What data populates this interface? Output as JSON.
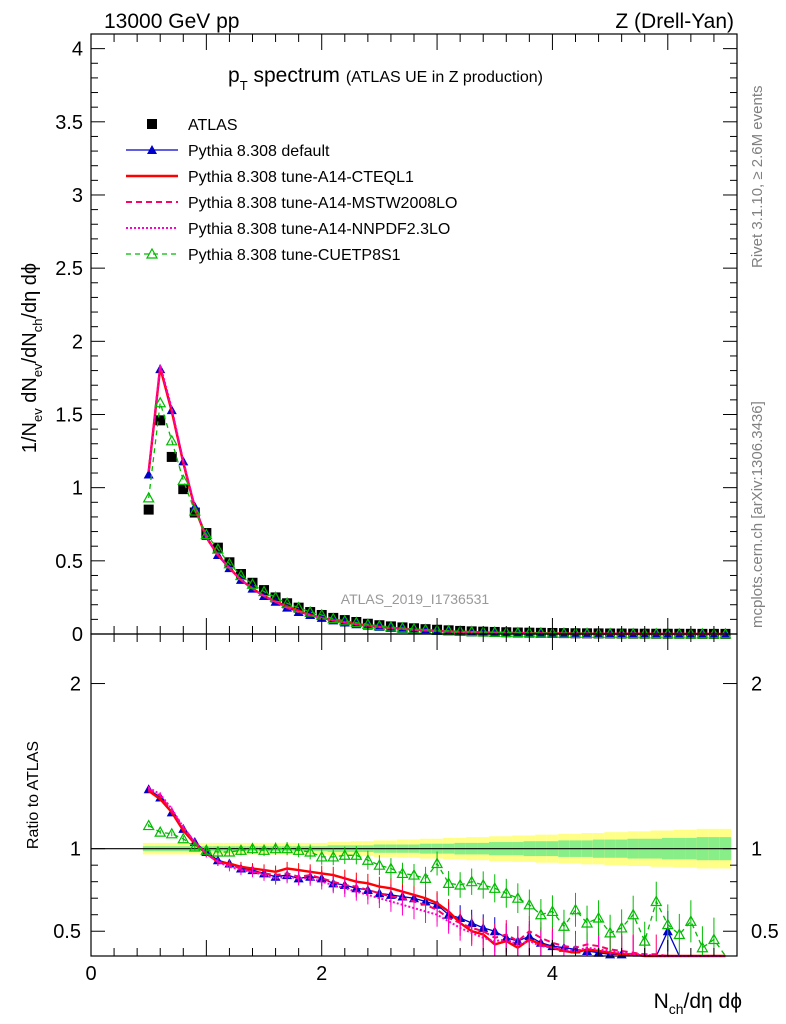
{
  "header": {
    "left": "13000 GeV pp",
    "right": "Z (Drell-Yan)"
  },
  "side": {
    "rivet": "Rivet 3.1.10, ≥ 2.6M events",
    "mcplots": "mcplots.cern.ch [arXiv:1306.3436]"
  },
  "watermark": "ATLAS_2019_I1736531",
  "title": {
    "main": "p",
    "sub": "T",
    "rest": " spectrum",
    "small": "(ATLAS UE in Z production)"
  },
  "axis_labels": {
    "ratio_y": "Ratio to ATLAS"
  },
  "colors": {
    "atlas": "#000000",
    "default": "#0000cc",
    "cteql1": "#ff0000",
    "mstw": "#ff0066",
    "nnpdf": "#ff00cc",
    "cuetp": "#00bb00",
    "band_outer": "#ffff88",
    "band_inner": "#88ee88"
  },
  "chart_data": {
    "type": "line",
    "x": [
      0.5,
      0.6,
      0.7,
      0.8,
      0.9,
      1.0,
      1.1,
      1.2,
      1.3,
      1.4,
      1.5,
      1.6,
      1.7,
      1.8,
      1.9,
      2.0,
      2.1,
      2.2,
      2.3,
      2.4,
      2.5,
      2.6,
      2.7,
      2.8,
      2.9,
      3.0,
      3.1,
      3.2,
      3.3,
      3.4,
      3.5,
      3.6,
      3.7,
      3.8,
      3.9,
      4.0,
      4.1,
      4.2,
      4.3,
      4.4,
      4.5,
      4.6,
      4.7,
      4.8,
      4.9,
      5.0,
      5.1,
      5.2,
      5.3,
      5.4,
      5.5
    ],
    "xlim": [
      0,
      5.6
    ],
    "xticks": [
      "0",
      "2",
      "4"
    ],
    "main": {
      "ylim": [
        0,
        4.1
      ],
      "yticks": [
        "0",
        "0.5",
        "1",
        "1.5",
        "2",
        "2.5",
        "3",
        "3.5",
        "4"
      ]
    },
    "ratio": {
      "ylim": [
        0.35,
        2.3
      ],
      "yticks": [
        "0.5",
        "1",
        "2"
      ]
    },
    "legend": [
      "ATLAS",
      "Pythia 8.308 default",
      "Pythia 8.308 tune-A14-CTEQL1",
      "Pythia 8.308 tune-A14-MSTW2008LO",
      "Pythia 8.308 tune-A14-NNPDF2.3LO",
      "Pythia 8.308 tune-CUETP8S1"
    ],
    "series": [
      {
        "name": "ATLAS",
        "values": [
          0.85,
          1.46,
          1.21,
          0.99,
          0.83,
          0.69,
          0.59,
          0.49,
          0.41,
          0.35,
          0.3,
          0.25,
          0.21,
          0.18,
          0.15,
          0.13,
          0.11,
          0.095,
          0.082,
          0.07,
          0.06,
          0.052,
          0.045,
          0.039,
          0.033,
          0.029,
          0.025,
          0.021,
          0.018,
          0.016,
          0.014,
          0.012,
          0.01,
          0.009,
          0.008,
          0.007,
          0.006,
          0.005,
          0.0045,
          0.004,
          0.0035,
          0.003,
          0.0025,
          0.002,
          0.0018,
          0.0016,
          0.0014,
          0.0012,
          0.001,
          0.0009,
          0.0008
        ]
      },
      {
        "name": "Pythia 8.308 default",
        "values": [
          1.09,
          1.81,
          1.53,
          1.18,
          0.87,
          0.67,
          0.54,
          0.45,
          0.37,
          0.31,
          0.26,
          0.22,
          0.18,
          0.15,
          0.13,
          0.11,
          0.093,
          0.079,
          0.067,
          0.057,
          0.049,
          0.041,
          0.035,
          0.03,
          0.025,
          0.021,
          0.018,
          0.015,
          0.013,
          0.011,
          0.009,
          0.008,
          0.007,
          0.006,
          0.005,
          0.004,
          0.0035,
          0.003,
          0.0025,
          0.002,
          0.0017,
          0.0015,
          0.0013,
          0.0011,
          0.0009,
          0.0008,
          0.0007,
          0.0006,
          0.0005,
          0.0004,
          0.0003
        ]
      },
      {
        "name": "Pythia 8.308 tune-A14-CTEQL1",
        "values": [
          1.11,
          1.82,
          1.52,
          1.17,
          0.86,
          0.66,
          0.54,
          0.45,
          0.37,
          0.31,
          0.26,
          0.22,
          0.19,
          0.16,
          0.13,
          0.11,
          0.094,
          0.08,
          0.068,
          0.058,
          0.049,
          0.042,
          0.036,
          0.03,
          0.026,
          0.022,
          0.018,
          0.015,
          0.013,
          0.011,
          0.009,
          0.008,
          0.007,
          0.006,
          0.005,
          0.004,
          0.0035,
          0.003,
          0.0025,
          0.002,
          0.0017,
          0.0015,
          0.0013,
          0.0011,
          0.0009,
          0.0008,
          0.0007,
          0.0006,
          0.0005,
          0.0004,
          0.0003
        ]
      },
      {
        "name": "Pythia 8.308 tune-A14-MSTW2008LO",
        "values": [
          1.11,
          1.83,
          1.53,
          1.18,
          0.87,
          0.66,
          0.54,
          0.45,
          0.37,
          0.31,
          0.26,
          0.22,
          0.18,
          0.15,
          0.13,
          0.11,
          0.092,
          0.078,
          0.066,
          0.056,
          0.048,
          0.04,
          0.034,
          0.029,
          0.025,
          0.021,
          0.018,
          0.015,
          0.012,
          0.01,
          0.009,
          0.007,
          0.006,
          0.005,
          0.0045,
          0.004,
          0.0035,
          0.003,
          0.0025,
          0.002,
          0.0017,
          0.0015,
          0.0013,
          0.0011,
          0.0009,
          0.0008,
          0.0007,
          0.0006,
          0.0005,
          0.0004,
          0.0003
        ]
      },
      {
        "name": "Pythia 8.308 tune-A14-NNPDF2.3LO",
        "values": [
          1.12,
          1.84,
          1.54,
          1.18,
          0.87,
          0.66,
          0.54,
          0.45,
          0.37,
          0.31,
          0.26,
          0.22,
          0.18,
          0.15,
          0.13,
          0.11,
          0.092,
          0.078,
          0.066,
          0.056,
          0.047,
          0.04,
          0.034,
          0.029,
          0.024,
          0.02,
          0.017,
          0.014,
          0.012,
          0.01,
          0.009,
          0.007,
          0.006,
          0.005,
          0.0045,
          0.004,
          0.0035,
          0.003,
          0.0025,
          0.002,
          0.0017,
          0.0015,
          0.0013,
          0.0011,
          0.0009,
          0.0008,
          0.0007,
          0.0006,
          0.0005,
          0.0004,
          0.0003
        ]
      },
      {
        "name": "Pythia 8.308 tune-CUETP8S1",
        "values": [
          0.93,
          1.58,
          1.32,
          1.05,
          0.84,
          0.68,
          0.58,
          0.48,
          0.4,
          0.34,
          0.29,
          0.25,
          0.21,
          0.18,
          0.15,
          0.13,
          0.105,
          0.09,
          0.078,
          0.066,
          0.056,
          0.048,
          0.041,
          0.035,
          0.03,
          0.026,
          0.022,
          0.019,
          0.016,
          0.014,
          0.012,
          0.01,
          0.009,
          0.008,
          0.007,
          0.006,
          0.005,
          0.0045,
          0.004,
          0.0035,
          0.003,
          0.0025,
          0.002,
          0.0017,
          0.0015,
          0.0013,
          0.0011,
          0.0009,
          0.0008,
          0.0007,
          0.0006
        ]
      }
    ],
    "ratio_series": [
      {
        "name": "Pythia 8.308 default",
        "values": [
          1.36,
          1.31,
          1.22,
          1.12,
          1.04,
          0.98,
          0.93,
          0.91,
          0.88,
          0.87,
          0.85,
          0.83,
          0.84,
          0.82,
          0.83,
          0.82,
          0.79,
          0.78,
          0.76,
          0.75,
          0.73,
          0.72,
          0.71,
          0.7,
          0.68,
          0.66,
          0.6,
          0.58,
          0.55,
          0.52,
          0.5,
          0.46,
          0.44,
          0.47,
          0.43,
          0.41,
          0.4,
          0.39,
          0.38,
          0.37,
          0.36,
          0.36,
          0.35,
          0.35,
          0.35,
          0.5,
          0.35,
          0.35,
          0.35,
          0.35,
          0.35
        ]
      },
      {
        "name": "Pythia 8.308 tune-A14-CTEQL1",
        "values": [
          1.35,
          1.3,
          1.22,
          1.11,
          1.03,
          0.97,
          0.92,
          0.91,
          0.89,
          0.88,
          0.87,
          0.86,
          0.88,
          0.87,
          0.86,
          0.85,
          0.84,
          0.82,
          0.8,
          0.79,
          0.77,
          0.76,
          0.74,
          0.72,
          0.7,
          0.67,
          0.62,
          0.55,
          0.5,
          0.48,
          0.42,
          0.44,
          0.4,
          0.45,
          0.42,
          0.4,
          0.38,
          0.37,
          0.39,
          0.38,
          0.37,
          0.36,
          0.36,
          0.35,
          0.35,
          0.35,
          0.35,
          0.35,
          0.35,
          0.35,
          0.35
        ]
      },
      {
        "name": "Pythia 8.308 tune-A14-MSTW2008LO",
        "values": [
          1.36,
          1.32,
          1.23,
          1.13,
          1.04,
          0.97,
          0.92,
          0.9,
          0.88,
          0.86,
          0.85,
          0.84,
          0.85,
          0.83,
          0.84,
          0.82,
          0.8,
          0.78,
          0.77,
          0.75,
          0.73,
          0.71,
          0.7,
          0.68,
          0.66,
          0.63,
          0.58,
          0.55,
          0.52,
          0.5,
          0.46,
          0.48,
          0.44,
          0.5,
          0.46,
          0.43,
          0.41,
          0.4,
          0.42,
          0.41,
          0.39,
          0.38,
          0.37,
          0.36,
          0.36,
          0.35,
          0.35,
          0.35,
          0.35,
          0.35,
          0.35
        ]
      },
      {
        "name": "Pythia 8.308 tune-A14-NNPDF2.3LO",
        "values": [
          1.37,
          1.33,
          1.24,
          1.13,
          1.04,
          0.97,
          0.92,
          0.89,
          0.87,
          0.86,
          0.84,
          0.82,
          0.83,
          0.82,
          0.82,
          0.8,
          0.78,
          0.76,
          0.74,
          0.72,
          0.7,
          0.68,
          0.66,
          0.64,
          0.62,
          0.6,
          0.56,
          0.52,
          0.49,
          0.46,
          0.44,
          0.45,
          0.42,
          0.44,
          0.41,
          0.4,
          0.39,
          0.38,
          0.4,
          0.39,
          0.38,
          0.37,
          0.36,
          0.36,
          0.35,
          0.35,
          0.35,
          0.35,
          0.35,
          0.35,
          0.35
        ]
      },
      {
        "name": "Pythia 8.308 tune-CUETP8S1",
        "values": [
          1.14,
          1.1,
          1.09,
          1.06,
          1.01,
          0.99,
          0.98,
          0.98,
          0.99,
          1.0,
          0.99,
          1.0,
          1.0,
          0.99,
          0.98,
          0.95,
          0.95,
          0.96,
          0.96,
          0.93,
          0.9,
          0.88,
          0.85,
          0.84,
          0.82,
          0.91,
          0.79,
          0.78,
          0.8,
          0.78,
          0.76,
          0.73,
          0.7,
          0.66,
          0.6,
          0.62,
          0.53,
          0.63,
          0.55,
          0.58,
          0.49,
          0.52,
          0.6,
          0.44,
          0.68,
          0.54,
          0.48,
          0.56,
          0.4,
          0.45,
          0.35
        ]
      }
    ],
    "band_outer": [
      0.035,
      0.035,
      0.035,
      0.035,
      0.035,
      0.035,
      0.035,
      0.035,
      0.035,
      0.035,
      0.035,
      0.035,
      0.035,
      0.035,
      0.035,
      0.035,
      0.04,
      0.04,
      0.045,
      0.045,
      0.05,
      0.05,
      0.055,
      0.055,
      0.06,
      0.06,
      0.065,
      0.065,
      0.07,
      0.07,
      0.075,
      0.075,
      0.08,
      0.08,
      0.085,
      0.085,
      0.09,
      0.09,
      0.095,
      0.095,
      0.1,
      0.1,
      0.105,
      0.105,
      0.11,
      0.11,
      0.115,
      0.115,
      0.12,
      0.12,
      0.12
    ],
    "band_inner": [
      0.015,
      0.015,
      0.015,
      0.015,
      0.015,
      0.015,
      0.015,
      0.015,
      0.015,
      0.015,
      0.015,
      0.015,
      0.015,
      0.015,
      0.015,
      0.015,
      0.02,
      0.02,
      0.02,
      0.02,
      0.025,
      0.025,
      0.025,
      0.025,
      0.03,
      0.03,
      0.03,
      0.035,
      0.035,
      0.035,
      0.04,
      0.04,
      0.04,
      0.045,
      0.045,
      0.045,
      0.05,
      0.05,
      0.05,
      0.055,
      0.055,
      0.055,
      0.06,
      0.06,
      0.06,
      0.065,
      0.065,
      0.065,
      0.07,
      0.07,
      0.07
    ]
  }
}
